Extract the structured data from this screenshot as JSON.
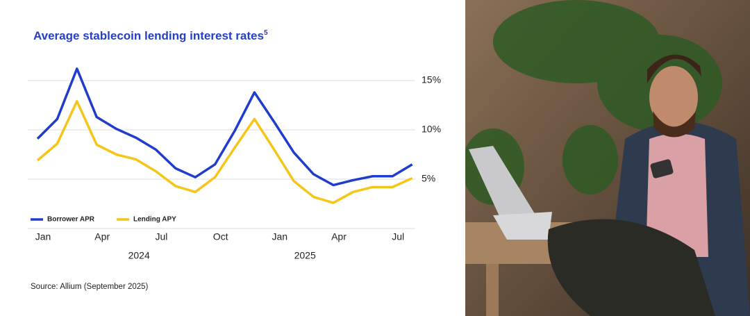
{
  "chart_data": {
    "type": "line",
    "title": "Average stablecoin lending interest rates",
    "title_footnote": "5",
    "source": "Source: Allium (September 2025)",
    "categories": [
      "Jan",
      null,
      null,
      "Apr",
      null,
      null,
      "Jul",
      null,
      null,
      "Oct",
      null,
      null,
      "Jan",
      null,
      null,
      "Apr",
      null,
      null,
      "Jul",
      null
    ],
    "years": [
      "2024",
      "2025"
    ],
    "series": [
      {
        "name": "Borrower APR",
        "color": "#1f3ccc",
        "values": [
          9.1,
          11.1,
          16.2,
          11.3,
          10.1,
          9.2,
          8.0,
          6.1,
          5.2,
          6.5,
          9.9,
          13.8,
          10.8,
          7.7,
          5.5,
          4.4,
          4.9,
          5.3,
          5.3,
          6.5
        ]
      },
      {
        "name": "Lending APY",
        "color": "#f5c518",
        "values": [
          6.9,
          8.6,
          12.9,
          8.5,
          7.5,
          7.0,
          5.8,
          4.3,
          3.7,
          5.2,
          8.2,
          11.1,
          8.0,
          4.8,
          3.2,
          2.6,
          3.7,
          4.2,
          4.2,
          5.1
        ]
      }
    ],
    "ylim": [
      0,
      16.5
    ],
    "yticks": [
      {
        "value": 5,
        "label": "5%"
      },
      {
        "value": 10,
        "label": "10%"
      },
      {
        "value": 15,
        "label": "15%"
      }
    ],
    "grid": true,
    "legend": "lower left"
  }
}
